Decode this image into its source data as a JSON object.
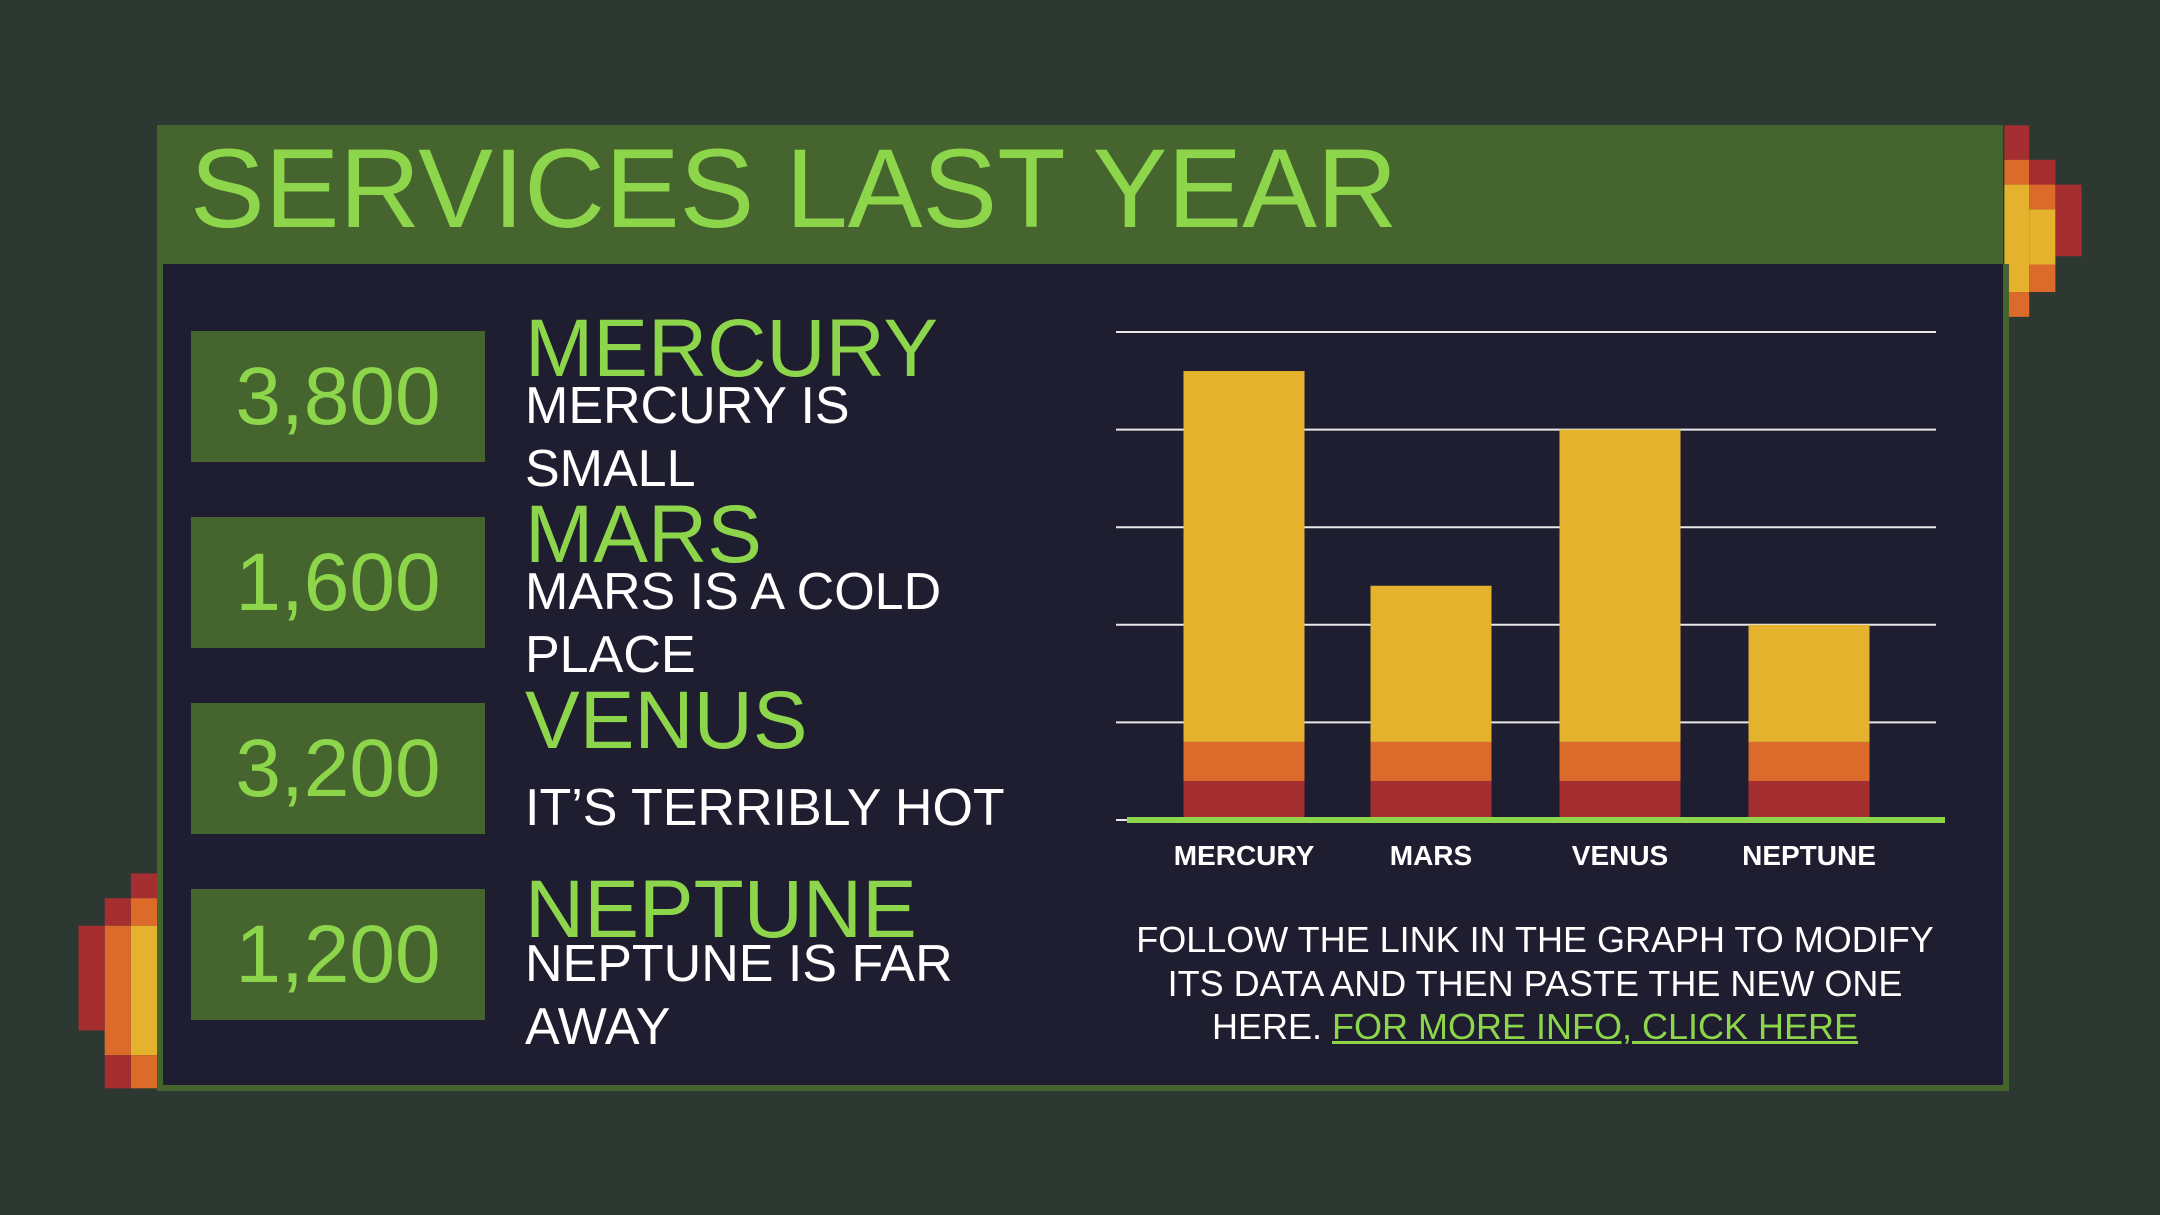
{
  "title": "SERVICES LAST YEAR",
  "items": [
    {
      "value": "3,800",
      "name": "MERCURY",
      "description": "MERCURY IS SMALL"
    },
    {
      "value": "1,600",
      "name": "MARS",
      "description": "MARS IS A COLD PLACE"
    },
    {
      "value": "3,200",
      "name": "VENUS",
      "description": "IT’S TERRIBLY HOT"
    },
    {
      "value": "1,200",
      "name": "NEPTUNE",
      "description": "NEPTUNE IS FAR AWAY"
    }
  ],
  "chart_data": {
    "type": "stacked_bar",
    "categories": [
      "MERCURY",
      "MARS",
      "VENUS",
      "NEPTUNE"
    ],
    "series": [
      {
        "color": "#a52f30",
        "values": [
          0.4,
          0.4,
          0.4,
          0.4
        ]
      },
      {
        "color": "#dc6a2a",
        "values": [
          0.4,
          0.4,
          0.4,
          0.4
        ]
      },
      {
        "color": "#e5b22e",
        "values": [
          3.8,
          1.6,
          3.2,
          1.2
        ]
      }
    ],
    "ylim": [
      0,
      5
    ],
    "yticks": [
      0,
      1,
      2,
      3,
      4,
      5
    ],
    "grid": true
  },
  "footer": {
    "text": "FOLLOW THE LINK IN THE GRAPH TO MODIFY ITS DATA AND THEN PASTE THE NEW ONE HERE.",
    "link": "FOR MORE INFO, CLICK HERE"
  }
}
